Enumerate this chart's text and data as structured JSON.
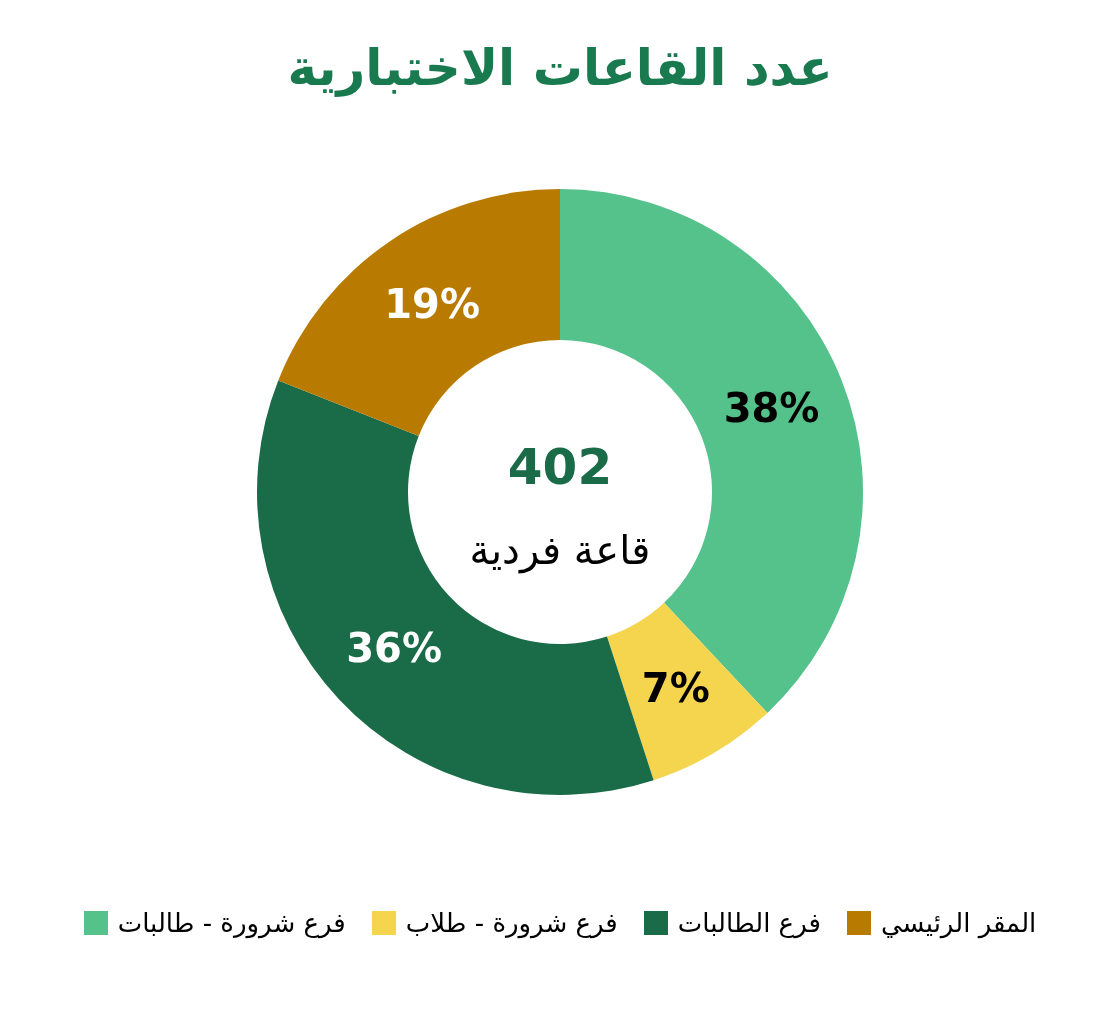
{
  "chart_data": {
    "type": "donut",
    "title": "عدد القاعات الاختبارية",
    "categories": [
      "فرع شرورة - طالبات",
      "فرع شرورة - طلاب",
      "فرع الطالبات",
      "المقر الرئيسي"
    ],
    "values": [
      38,
      7,
      36,
      19
    ],
    "colors": [
      "#54c28a",
      "#f5d44e",
      "#1a6b48",
      "#b87b00"
    ],
    "value_labels": [
      "38%",
      "7%",
      "36%",
      "19%"
    ],
    "legend": "bottom",
    "annotations": [
      "402",
      "قاعة فردية"
    ]
  }
}
